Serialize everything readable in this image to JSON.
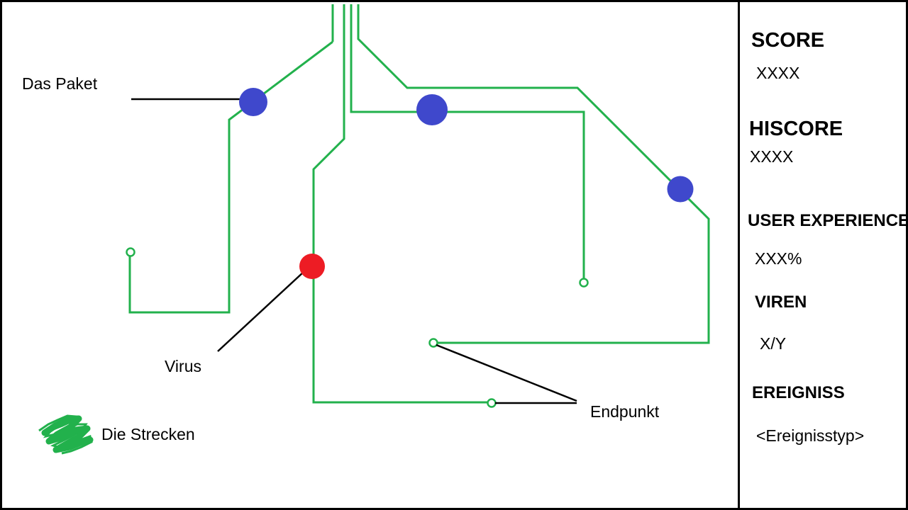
{
  "labels": {
    "packet": "Das Paket",
    "virus": "Virus",
    "endpoint": "Endpunkt",
    "tracks": "Die Strecken"
  },
  "hud": {
    "score_label": "SCORE",
    "score_value": "XXXX",
    "hiscore_label": "HISCORE",
    "hiscore_value": "XXXX",
    "ux_label": "USER EXPERIENCE",
    "ux_value": "XXX%",
    "viren_label": "VIREN",
    "viren_value": "X/Y",
    "event_label": "EREIGNISS",
    "event_value": "<Ereignisstyp>"
  },
  "colors": {
    "track": "#22b14c",
    "packet": "#3f48cc",
    "virus": "#ed1c24",
    "pointer": "#000000"
  }
}
